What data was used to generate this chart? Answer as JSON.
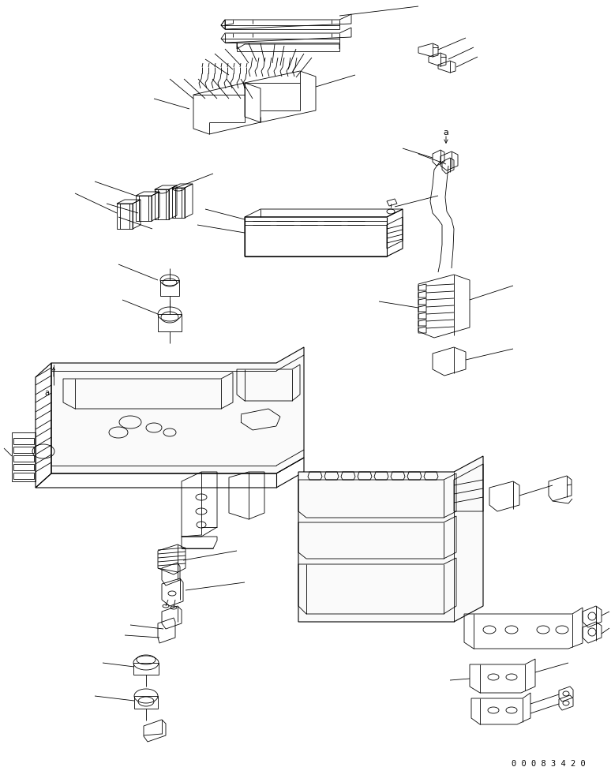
{
  "bg_color": "#ffffff",
  "lc": "#000000",
  "lw": 0.6,
  "lw2": 0.8,
  "fig_width": 7.74,
  "fig_height": 9.91,
  "dpi": 100,
  "part_number": "0 0 0 8 3 4 2 0"
}
